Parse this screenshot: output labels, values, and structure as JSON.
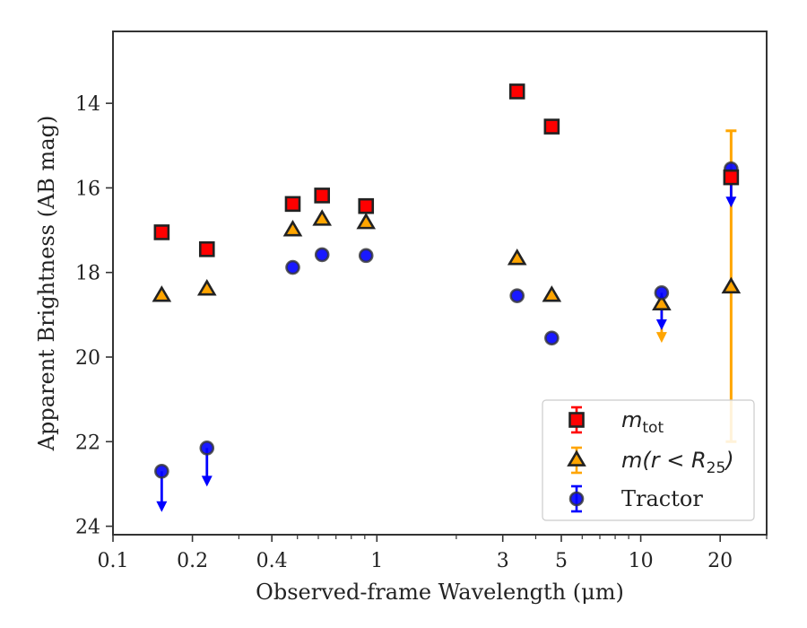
{
  "chart_data": {
    "type": "scatter",
    "xlabel": "Observed-frame Wavelength (μm)",
    "ylabel": "Apparent Brightness (AB mag)",
    "x_scale": "log",
    "xlim": [
      0.1,
      30
    ],
    "ylim": [
      24.2,
      12.3
    ],
    "y_inverted": true,
    "x_ticks": [
      {
        "value": 0.1,
        "label": "0.1"
      },
      {
        "value": 0.2,
        "label": "0.2"
      },
      {
        "value": 0.4,
        "label": "0.4"
      },
      {
        "value": 1,
        "label": "1"
      },
      {
        "value": 3,
        "label": "3"
      },
      {
        "value": 5,
        "label": "5"
      },
      {
        "value": 10,
        "label": "10"
      },
      {
        "value": 20,
        "label": "20"
      }
    ],
    "y_ticks": [
      {
        "value": 14,
        "label": "14"
      },
      {
        "value": 16,
        "label": "16"
      },
      {
        "value": 18,
        "label": "18"
      },
      {
        "value": 20,
        "label": "20"
      },
      {
        "value": 22,
        "label": "22"
      },
      {
        "value": 24,
        "label": "24"
      }
    ],
    "legend_position": "lower-right",
    "series": [
      {
        "name": "m_tot",
        "legend_label": {
          "base": "m",
          "sub": "tot"
        },
        "marker": "square",
        "color": "#ff0000",
        "edge_color": "#222222",
        "points": [
          {
            "x": 0.153,
            "y": 17.05
          },
          {
            "x": 0.227,
            "y": 17.45
          },
          {
            "x": 0.48,
            "y": 16.38
          },
          {
            "x": 0.62,
            "y": 16.18
          },
          {
            "x": 0.91,
            "y": 16.43
          },
          {
            "x": 3.4,
            "y": 13.72
          },
          {
            "x": 4.6,
            "y": 14.55
          },
          {
            "x": 22.0,
            "y": 15.75
          }
        ]
      },
      {
        "name": "m(r<R25)",
        "legend_label": {
          "pre": "m(r < R",
          "sub": "25",
          "post": ")"
        },
        "marker": "triangle",
        "color": "#ffa500",
        "edge_color": "#222222",
        "points": [
          {
            "x": 0.153,
            "y": 18.55
          },
          {
            "x": 0.227,
            "y": 18.4
          },
          {
            "x": 0.48,
            "y": 17.0
          },
          {
            "x": 0.62,
            "y": 16.75
          },
          {
            "x": 0.91,
            "y": 16.83
          },
          {
            "x": 3.4,
            "y": 17.68
          },
          {
            "x": 4.6,
            "y": 18.55
          },
          {
            "x": 12.0,
            "y": 18.75,
            "upper_limit": true,
            "arrow_to": 19.6
          },
          {
            "x": 22.0,
            "y": 18.35,
            "err_low": 14.65,
            "err_high": 22.0
          }
        ]
      },
      {
        "name": "Tractor",
        "legend_label": {
          "text": "Tractor"
        },
        "marker": "circle",
        "color": "#0000ff",
        "edge_color": "#333333",
        "points": [
          {
            "x": 0.153,
            "y": 22.7,
            "upper_limit": true,
            "arrow_to": 23.6
          },
          {
            "x": 0.227,
            "y": 22.15,
            "upper_limit": true,
            "arrow_to": 23.0
          },
          {
            "x": 0.48,
            "y": 17.88
          },
          {
            "x": 0.62,
            "y": 17.58
          },
          {
            "x": 0.91,
            "y": 17.6
          },
          {
            "x": 3.4,
            "y": 18.55
          },
          {
            "x": 4.6,
            "y": 19.55
          },
          {
            "x": 12.0,
            "y": 18.48,
            "upper_limit": true,
            "arrow_to": 19.3
          },
          {
            "x": 22.0,
            "y": 15.55,
            "upper_limit": true,
            "arrow_to": 16.4
          }
        ]
      }
    ]
  }
}
